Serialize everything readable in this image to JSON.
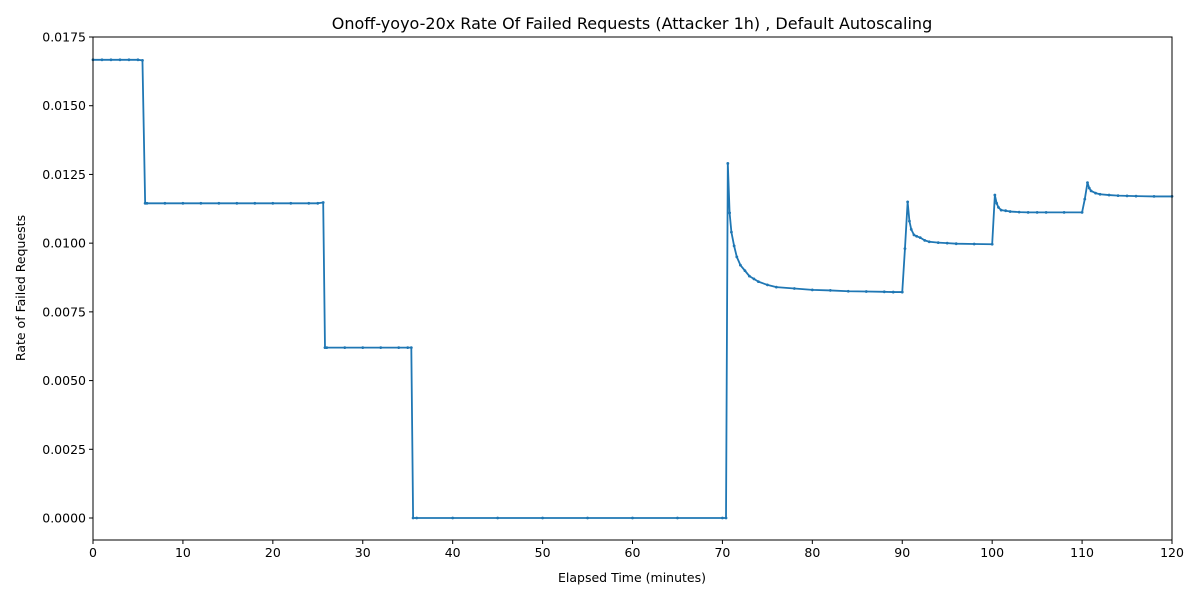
{
  "chart_data": {
    "type": "line",
    "title": "Onoff-yoyo-20x Rate Of Failed Requests (Attacker 1h) , Default Autoscaling",
    "xlabel": "Elapsed Time (minutes)",
    "ylabel": "Rate of Failed Requests",
    "xlim": [
      0,
      120
    ],
    "ylim": [
      -0.0008,
      0.0175
    ],
    "x_ticks": [
      0,
      10,
      20,
      30,
      40,
      50,
      60,
      70,
      80,
      90,
      100,
      110,
      120
    ],
    "x_tick_labels": [
      "0",
      "10",
      "20",
      "30",
      "40",
      "50",
      "60",
      "70",
      "80",
      "90",
      "100",
      "110",
      "120"
    ],
    "y_ticks": [
      0,
      0.0025,
      0.005,
      0.0075,
      0.01,
      0.0125,
      0.015,
      0.0175
    ],
    "y_tick_labels": [
      "0.0000",
      "0.0025",
      "0.0050",
      "0.0075",
      "0.0100",
      "0.0125",
      "0.0150",
      "0.0175"
    ],
    "grid": false,
    "legend": "none",
    "line_color": "#1f77b4",
    "series": [
      {
        "x": [
          0,
          1,
          2,
          3,
          4,
          5,
          5.5,
          5.8,
          6,
          8,
          10,
          12,
          14,
          16,
          18,
          20,
          22,
          24,
          25,
          25.6,
          25.8,
          26,
          28,
          30,
          32,
          34,
          35,
          35.4,
          35.6,
          36,
          40,
          45,
          50,
          55,
          60,
          65,
          70,
          70.4,
          70.6,
          70.8,
          71,
          71.3,
          71.6,
          72,
          72.5,
          73,
          73.5,
          74,
          75,
          76,
          78,
          80,
          82,
          84,
          86,
          88,
          89,
          90,
          90.3,
          90.6,
          90.8,
          91,
          91.3,
          91.6,
          92,
          92.5,
          93,
          94,
          95,
          96,
          98,
          100,
          100.3,
          100.5,
          100.7,
          101,
          101.5,
          102,
          103,
          104,
          105,
          106,
          108,
          110,
          110.3,
          110.6,
          110.8,
          111,
          111.5,
          112,
          113,
          114,
          115,
          116,
          118,
          120
        ],
        "y": [
          0.01667,
          0.01667,
          0.01667,
          0.01667,
          0.01667,
          0.01667,
          0.01665,
          0.01145,
          0.01145,
          0.01145,
          0.01145,
          0.01145,
          0.01145,
          0.01145,
          0.01145,
          0.01145,
          0.01145,
          0.01145,
          0.01145,
          0.01148,
          0.0062,
          0.0062,
          0.0062,
          0.0062,
          0.0062,
          0.0062,
          0.0062,
          0.0062,
          0.0,
          0.0,
          0.0,
          0.0,
          0.0,
          0.0,
          0.0,
          0.0,
          0.0,
          0.0,
          0.0129,
          0.0111,
          0.0104,
          0.0099,
          0.0095,
          0.0092,
          0.009,
          0.0088,
          0.0087,
          0.0086,
          0.00848,
          0.0084,
          0.00835,
          0.0083,
          0.00828,
          0.00825,
          0.00824,
          0.00823,
          0.00822,
          0.00822,
          0.0098,
          0.0115,
          0.0108,
          0.0105,
          0.0103,
          0.01025,
          0.0102,
          0.0101,
          0.01005,
          0.01002,
          0.01,
          0.00998,
          0.00997,
          0.00996,
          0.01175,
          0.01145,
          0.0113,
          0.0112,
          0.01118,
          0.01115,
          0.01113,
          0.01112,
          0.01112,
          0.01112,
          0.01112,
          0.01112,
          0.0116,
          0.0122,
          0.012,
          0.0119,
          0.01182,
          0.01178,
          0.01175,
          0.01173,
          0.01172,
          0.01171,
          0.0117,
          0.0117
        ]
      }
    ]
  }
}
